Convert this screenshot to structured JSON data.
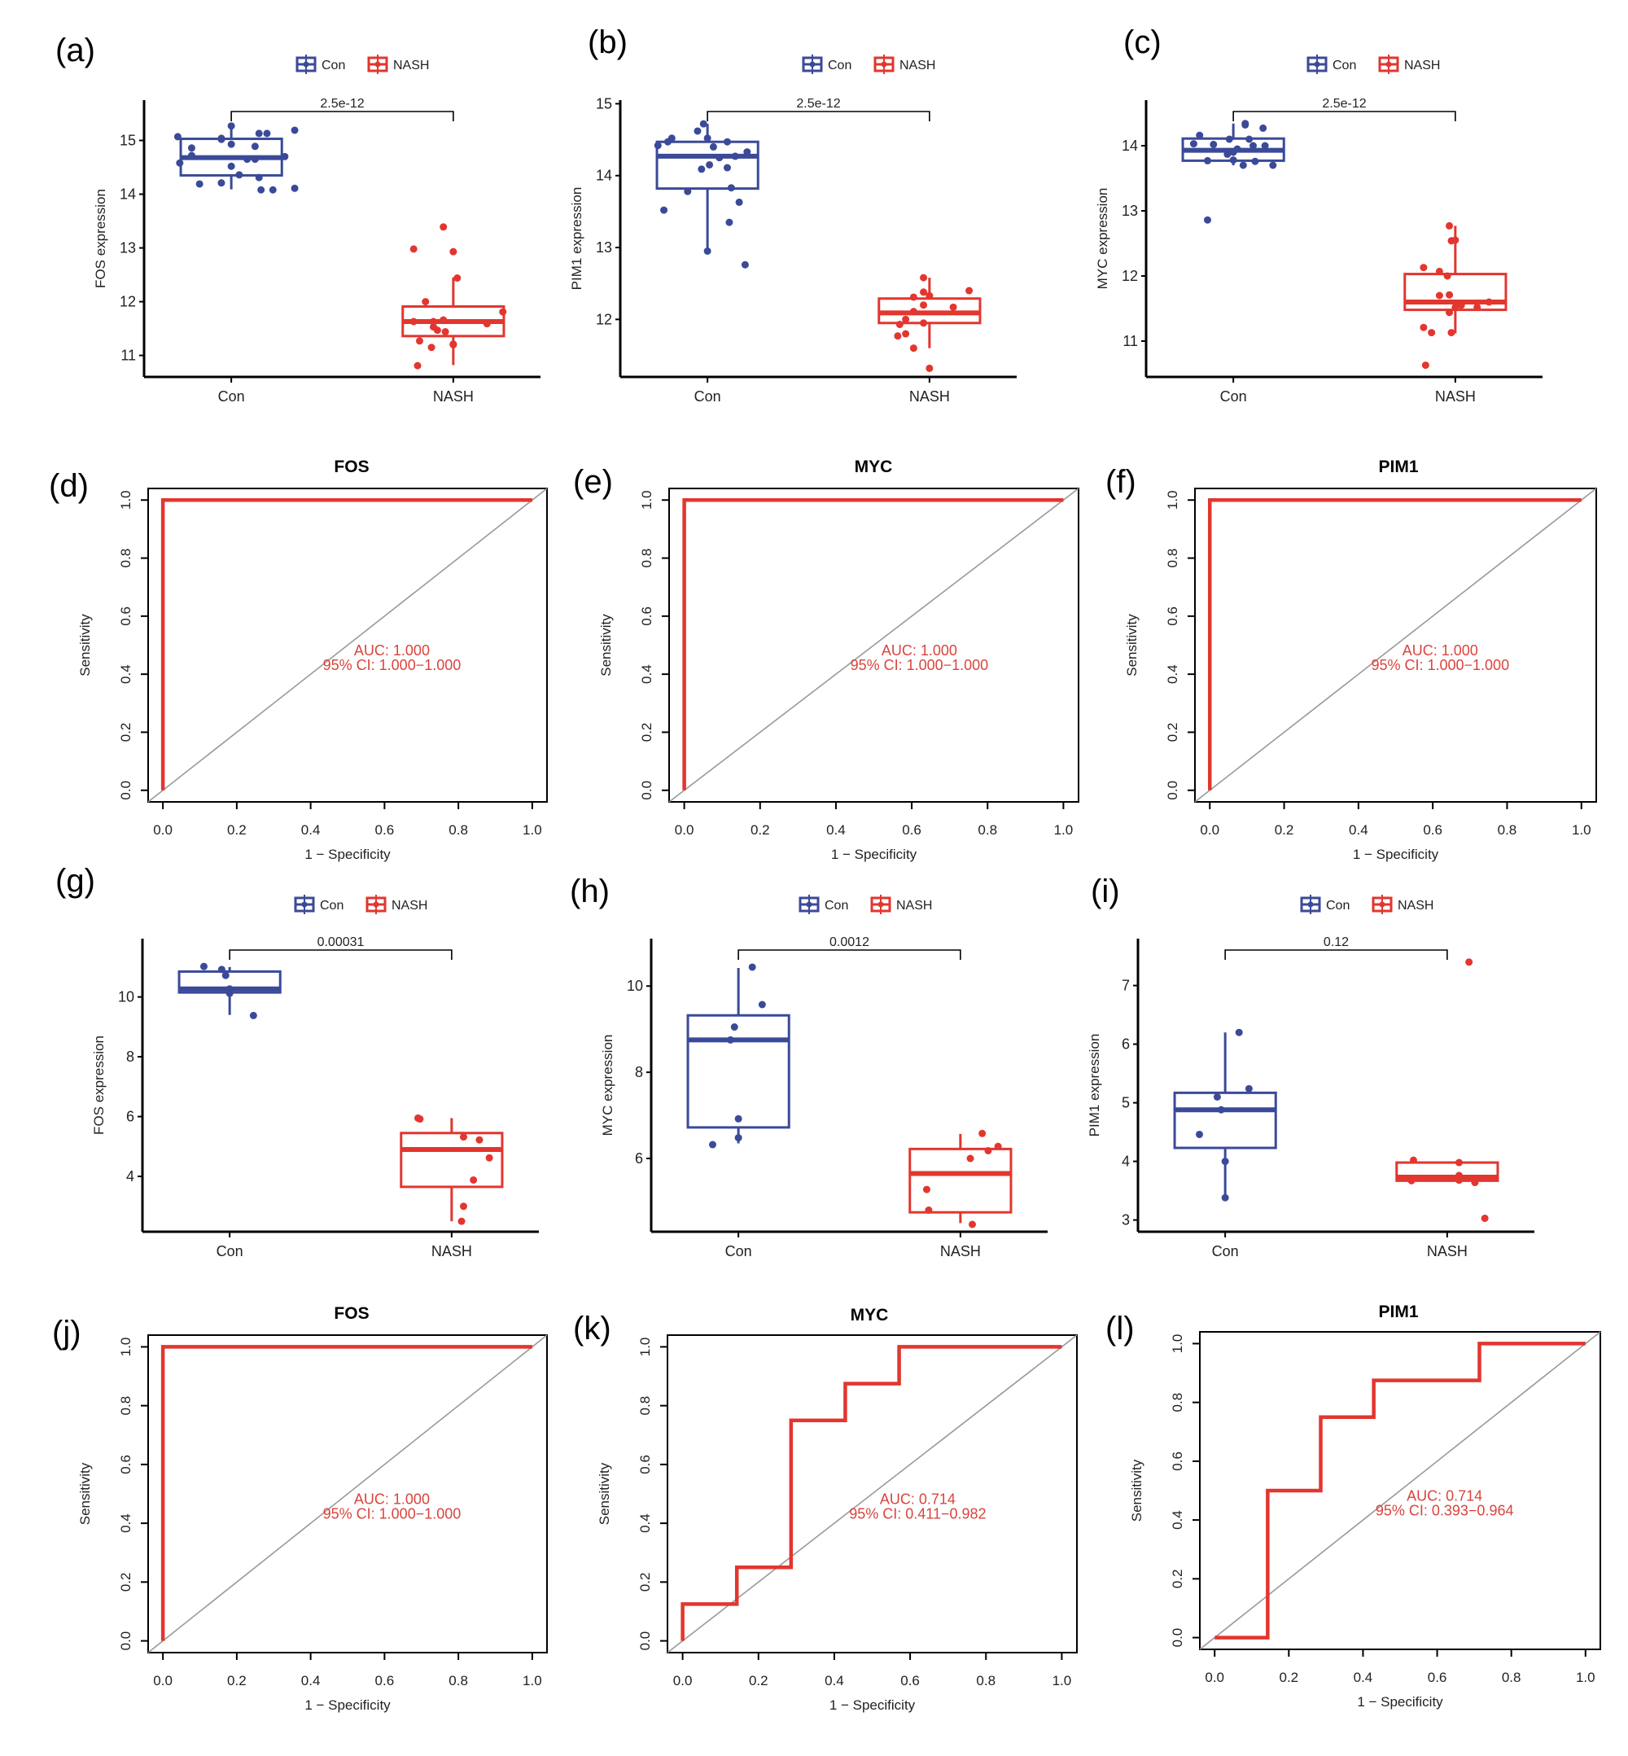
{
  "colors": {
    "con": "#3B4A98",
    "nash": "#E2362F",
    "diag": "#999999",
    "axis": "#000000"
  },
  "chart_data": [
    {
      "id": "a",
      "panel_label": "(a)",
      "type": "box",
      "legend": [
        "Con",
        "NASH"
      ],
      "legend_placement": "top",
      "categories": [
        "Con",
        "NASH"
      ],
      "ylabel": "FOS expression",
      "ylim": [
        10.6,
        15.75
      ],
      "yticks": [
        11,
        12,
        13,
        14,
        15
      ],
      "pvalue": "2.5e-12",
      "boxes": [
        {
          "name": "Con",
          "q1": 14.35,
          "median": 14.68,
          "q3": 15.03,
          "whisker_low": 14.09,
          "whisker_high": 15.27
        },
        {
          "name": "NASH",
          "q1": 11.36,
          "median": 11.63,
          "q3": 11.91,
          "whisker_low": 10.82,
          "whisker_high": 12.45
        }
      ],
      "points": [
        {
          "group": "Con",
          "jitter": [
            -0.27,
            -0.2,
            0.0,
            0.14,
            0.18,
            0.32,
            -0.05,
            0.0,
            -0.2,
            -0.26,
            0.27,
            0.08,
            0.14,
            0.04,
            -0.16,
            -0.05,
            0.0,
            0.15,
            0.21,
            0.32,
            -0.05,
            0.12,
            0.12
          ],
          "values": [
            15.07,
            14.86,
            15.27,
            15.13,
            15.13,
            15.19,
            15.02,
            14.93,
            14.72,
            14.58,
            14.7,
            14.65,
            14.31,
            14.36,
            14.19,
            14.21,
            14.52,
            14.08,
            14.08,
            14.11,
            15.04,
            14.89,
            14.65
          ]
        },
        {
          "group": "NASH",
          "jitter": [
            -0.05,
            -0.2,
            0.0,
            0.02,
            -0.14,
            0.25,
            0.17,
            -0.2,
            -0.1,
            -0.05,
            -0.1,
            -0.08,
            0.0,
            -0.11,
            -0.17,
            0.0,
            -0.18,
            -0.04
          ],
          "values": [
            13.39,
            12.98,
            12.93,
            12.44,
            12.0,
            11.81,
            11.59,
            11.63,
            11.63,
            11.66,
            11.53,
            11.47,
            11.2,
            11.15,
            11.27,
            11.21,
            10.81,
            11.44
          ]
        }
      ]
    },
    {
      "id": "b",
      "panel_label": "(b)",
      "type": "box",
      "legend": [
        "Con",
        "NASH"
      ],
      "legend_placement": "top",
      "categories": [
        "Con",
        "NASH"
      ],
      "ylabel": "PIM1 expression",
      "ylim": [
        11.2,
        15.05
      ],
      "yticks": [
        12,
        13,
        14,
        15
      ],
      "pvalue": "2.5e-12",
      "boxes": [
        {
          "name": "Con",
          "q1": 13.82,
          "median": 14.27,
          "q3": 14.47,
          "whisker_low": 12.95,
          "whisker_high": 14.72
        },
        {
          "name": "NASH",
          "q1": 11.95,
          "median": 12.09,
          "q3": 12.29,
          "whisker_low": 11.6,
          "whisker_high": 12.58
        }
      ],
      "points": [
        {
          "group": "Con",
          "jitter": [
            -0.02,
            -0.05,
            0.0,
            -0.25,
            -0.18,
            0.1,
            0.03,
            0.2,
            0.14,
            0.06,
            -0.03,
            0.01,
            0.1,
            0.12,
            -0.1,
            -0.22,
            0.16,
            0.11,
            0.0,
            0.19,
            -0.2
          ],
          "values": [
            14.72,
            14.62,
            14.52,
            14.42,
            14.52,
            14.47,
            14.4,
            14.33,
            14.27,
            14.25,
            14.09,
            14.15,
            14.11,
            13.83,
            13.78,
            13.52,
            13.63,
            13.35,
            12.95,
            12.76,
            14.47
          ]
        },
        {
          "group": "NASH",
          "jitter": [
            -0.03,
            0.2,
            -0.03,
            -0.08,
            0.0,
            0.12,
            -0.03,
            -0.08,
            -0.12,
            -0.15,
            -0.16,
            -0.08,
            0.0,
            -0.03,
            -0.12
          ],
          "values": [
            12.58,
            12.4,
            12.38,
            12.31,
            12.33,
            12.17,
            12.2,
            12.11,
            12.0,
            11.93,
            11.77,
            11.6,
            11.32,
            11.95,
            11.8
          ]
        }
      ]
    },
    {
      "id": "c",
      "panel_label": "(c)",
      "type": "box",
      "legend": [
        "Con",
        "NASH"
      ],
      "legend_placement": "top",
      "categories": [
        "Con",
        "NASH"
      ],
      "ylabel": "MYC expression",
      "ylim": [
        10.45,
        14.7
      ],
      "yticks": [
        11,
        12,
        13,
        14
      ],
      "pvalue": "2.5e-12",
      "boxes": [
        {
          "name": "Con",
          "q1": 13.77,
          "median": 13.93,
          "q3": 14.11,
          "whisker_low": 13.7,
          "whisker_high": 14.34
        },
        {
          "name": "NASH",
          "q1": 11.48,
          "median": 11.6,
          "q3": 12.03,
          "whisker_low": 11.12,
          "whisker_high": 12.77
        }
      ],
      "points": [
        {
          "group": "Con",
          "jitter": [
            0.06,
            0.06,
            0.15,
            -0.17,
            -0.2,
            -0.1,
            -0.02,
            0.08,
            0.1,
            0.16,
            0.02,
            0.0,
            -0.03,
            -0.13,
            0.0,
            0.11,
            0.05,
            0.2,
            -0.13
          ],
          "values": [
            14.34,
            14.32,
            14.27,
            14.16,
            14.03,
            14.02,
            14.1,
            14.1,
            14.0,
            14.0,
            13.95,
            13.9,
            13.87,
            13.77,
            13.78,
            13.76,
            13.7,
            13.7,
            12.86
          ]
        },
        {
          "group": "NASH",
          "jitter": [
            -0.03,
            -0.02,
            0.0,
            -0.16,
            -0.08,
            -0.04,
            -0.08,
            -0.03,
            0.17,
            0.0,
            0.03,
            0.11,
            -0.03,
            -0.16,
            -0.12,
            -0.02,
            -0.15
          ],
          "values": [
            12.77,
            12.54,
            12.55,
            12.13,
            12.07,
            12.0,
            11.7,
            11.71,
            11.6,
            11.52,
            11.55,
            11.52,
            11.44,
            11.21,
            11.13,
            11.13,
            10.63
          ]
        }
      ]
    },
    {
      "id": "d",
      "panel_label": "(d)",
      "type": "roc",
      "title": "FOS",
      "xlabel": "1 − Specificity",
      "ylabel": "Sensitivity",
      "xlim": [
        0,
        1
      ],
      "ylim": [
        0,
        1
      ],
      "ticks": [
        "0.0",
        "0.2",
        "0.4",
        "0.6",
        "0.8",
        "1.0"
      ],
      "auc_label": "AUC: 1.000",
      "ci_label": "95% CI: 1.000−1.000",
      "roc_points": [
        [
          0,
          0
        ],
        [
          0,
          1
        ],
        [
          1,
          1
        ]
      ]
    },
    {
      "id": "e",
      "panel_label": "(e)",
      "type": "roc",
      "title": "MYC",
      "xlabel": "1 − Specificity",
      "ylabel": "Sensitivity",
      "xlim": [
        0,
        1
      ],
      "ylim": [
        0,
        1
      ],
      "ticks": [
        "0.0",
        "0.2",
        "0.4",
        "0.6",
        "0.8",
        "1.0"
      ],
      "auc_label": "AUC: 1.000",
      "ci_label": "95% CI: 1.000−1.000",
      "roc_points": [
        [
          0,
          0
        ],
        [
          0,
          1
        ],
        [
          1,
          1
        ]
      ]
    },
    {
      "id": "f",
      "panel_label": "(f)",
      "type": "roc",
      "title": "PIM1",
      "xlabel": "1 − Specificity",
      "ylabel": "Sensitivity",
      "xlim": [
        0,
        1
      ],
      "ylim": [
        0,
        1
      ],
      "ticks": [
        "0.0",
        "0.2",
        "0.4",
        "0.6",
        "0.8",
        "1.0"
      ],
      "auc_label": "AUC: 1.000",
      "ci_label": "95% CI: 1.000−1.000",
      "roc_points": [
        [
          0,
          0
        ],
        [
          0,
          1
        ],
        [
          1,
          1
        ]
      ]
    },
    {
      "id": "g",
      "panel_label": "(g)",
      "type": "box",
      "legend": [
        "Con",
        "NASH"
      ],
      "legend_placement": "top",
      "categories": [
        "Con",
        "NASH"
      ],
      "ylabel": "FOS expression",
      "ylim": [
        2.15,
        11.95
      ],
      "yticks": [
        4,
        6,
        8,
        10
      ],
      "pvalue": "0.00031",
      "boxes": [
        {
          "name": "Con",
          "q1": 10.15,
          "median": 10.27,
          "q3": 10.85,
          "whisker_low": 9.4,
          "whisker_high": 11.0
        },
        {
          "name": "NASH",
          "q1": 3.65,
          "median": 4.9,
          "q3": 5.45,
          "whisker_low": 2.5,
          "whisker_high": 5.95
        }
      ],
      "points": [
        {
          "group": "Con",
          "jitter": [
            -0.13,
            -0.04,
            -0.02,
            0.0,
            0.0,
            0.12
          ],
          "values": [
            11.02,
            10.92,
            10.72,
            10.27,
            10.12,
            9.38
          ]
        },
        {
          "group": "NASH",
          "jitter": [
            -0.17,
            -0.16,
            0.06,
            0.14,
            0.19,
            0.11,
            0.06,
            0.05
          ],
          "values": [
            5.95,
            5.92,
            5.32,
            5.22,
            4.62,
            3.88,
            3.0,
            2.5
          ]
        }
      ]
    },
    {
      "id": "h",
      "panel_label": "(h)",
      "type": "box",
      "legend": [
        "Con",
        "NASH"
      ],
      "legend_placement": "top",
      "categories": [
        "Con",
        "NASH"
      ],
      "ylabel": "MYC expression",
      "ylim": [
        4.3,
        11.1
      ],
      "yticks": [
        6,
        8,
        10
      ],
      "pvalue": "0.0012",
      "boxes": [
        {
          "name": "Con",
          "q1": 6.72,
          "median": 8.75,
          "q3": 9.32,
          "whisker_low": 6.35,
          "whisker_high": 10.42
        },
        {
          "name": "NASH",
          "q1": 4.75,
          "median": 5.65,
          "q3": 6.22,
          "whisker_low": 4.5,
          "whisker_high": 6.57
        }
      ],
      "points": [
        {
          "group": "Con",
          "jitter": [
            0.07,
            0.12,
            -0.02,
            -0.04,
            0.0,
            0.0,
            -0.13
          ],
          "values": [
            10.44,
            9.57,
            9.05,
            8.75,
            6.92,
            6.48,
            6.32
          ]
        },
        {
          "group": "NASH",
          "jitter": [
            0.11,
            0.19,
            0.14,
            0.05,
            -0.17,
            -0.16,
            0.06
          ],
          "values": [
            6.58,
            6.28,
            6.18,
            6.0,
            5.28,
            4.8,
            4.47
          ]
        }
      ]
    },
    {
      "id": "i",
      "panel_label": "(i)",
      "type": "box",
      "legend": [
        "Con",
        "NASH"
      ],
      "legend_placement": "top",
      "categories": [
        "Con",
        "NASH"
      ],
      "ylabel": "PIM1 expression",
      "ylim": [
        2.8,
        7.8
      ],
      "yticks": [
        3,
        4,
        5,
        6,
        7
      ],
      "pvalue": "0.12",
      "boxes": [
        {
          "name": "Con",
          "q1": 4.23,
          "median": 4.88,
          "q3": 5.17,
          "whisker_low": 3.38,
          "whisker_high": 6.2
        },
        {
          "name": "NASH",
          "q1": 3.67,
          "median": 3.73,
          "q3": 3.98,
          "whisker_low": 3.67,
          "whisker_high": 4.0
        }
      ],
      "points": [
        {
          "group": "Con",
          "jitter": [
            0.07,
            0.12,
            -0.04,
            -0.02,
            -0.13,
            0.0,
            0.0
          ],
          "values": [
            6.2,
            5.24,
            5.1,
            4.88,
            4.46,
            4.0,
            3.38
          ]
        },
        {
          "group": "NASH",
          "jitter": [
            0.11,
            -0.17,
            0.06,
            0.06,
            -0.18,
            0.06,
            0.14,
            0.19
          ],
          "values": [
            7.4,
            4.02,
            3.98,
            3.76,
            3.67,
            3.68,
            3.64,
            3.03
          ]
        }
      ]
    },
    {
      "id": "j",
      "panel_label": "(j)",
      "type": "roc",
      "title": "FOS",
      "xlabel": "1 − Specificity",
      "ylabel": "Sensitivity",
      "xlim": [
        0,
        1
      ],
      "ylim": [
        0,
        1
      ],
      "ticks": [
        "0.0",
        "0.2",
        "0.4",
        "0.6",
        "0.8",
        "1.0"
      ],
      "auc_label": "AUC: 1.000",
      "ci_label": "95% CI: 1.000−1.000",
      "roc_points": [
        [
          0,
          0
        ],
        [
          0,
          1
        ],
        [
          1,
          1
        ]
      ]
    },
    {
      "id": "k",
      "panel_label": "(k)",
      "type": "roc",
      "title": "MYC",
      "xlabel": "1 − Specificity",
      "ylabel": "Sensitivity",
      "xlim": [
        0,
        1
      ],
      "ylim": [
        0,
        1
      ],
      "ticks": [
        "0.0",
        "0.2",
        "0.4",
        "0.6",
        "0.8",
        "1.0"
      ],
      "auc_label": "AUC: 0.714",
      "ci_label": "95% CI: 0.411−0.982",
      "roc_points": [
        [
          0,
          0
        ],
        [
          0,
          0.125
        ],
        [
          0.143,
          0.125
        ],
        [
          0.143,
          0.25
        ],
        [
          0.286,
          0.25
        ],
        [
          0.286,
          0.75
        ],
        [
          0.429,
          0.75
        ],
        [
          0.429,
          0.875
        ],
        [
          0.571,
          0.875
        ],
        [
          0.571,
          1
        ],
        [
          1,
          1
        ]
      ]
    },
    {
      "id": "l",
      "panel_label": "(l)",
      "type": "roc",
      "title": "PIM1",
      "xlabel": "1 − Specificity",
      "ylabel": "Sensitivity",
      "xlim": [
        0,
        1
      ],
      "ylim": [
        0,
        1
      ],
      "ticks": [
        "0.0",
        "0.2",
        "0.4",
        "0.6",
        "0.8",
        "1.0"
      ],
      "auc_label": "AUC: 0.714",
      "ci_label": "95% CI: 0.393−0.964",
      "roc_points": [
        [
          0,
          0
        ],
        [
          0.143,
          0
        ],
        [
          0.143,
          0.5
        ],
        [
          0.286,
          0.5
        ],
        [
          0.286,
          0.75
        ],
        [
          0.429,
          0.75
        ],
        [
          0.429,
          0.875
        ],
        [
          0.714,
          0.875
        ],
        [
          0.714,
          1
        ],
        [
          1,
          1
        ]
      ]
    }
  ]
}
